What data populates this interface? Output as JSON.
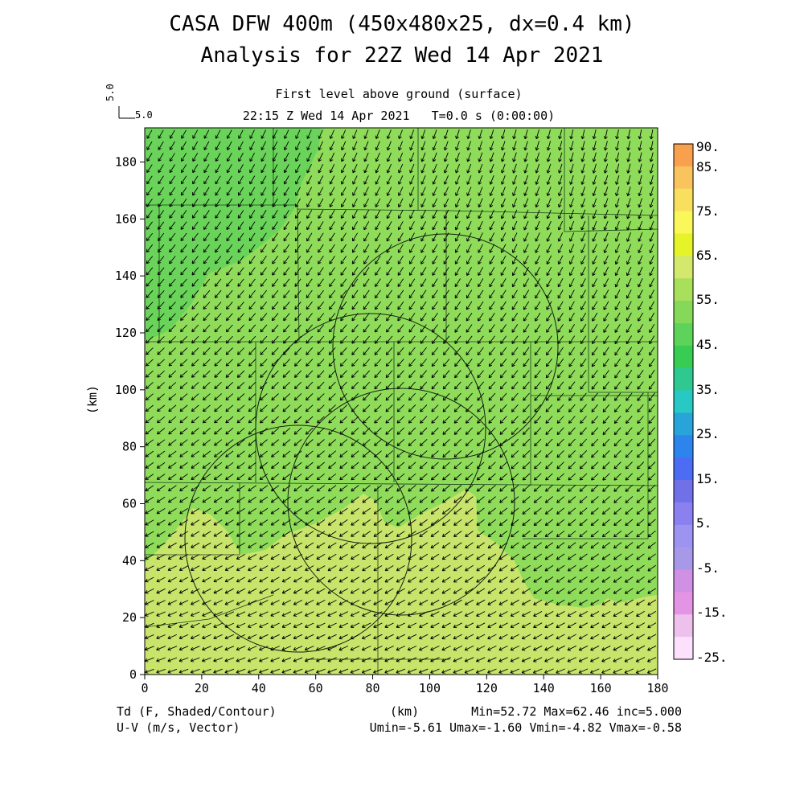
{
  "title": {
    "line1": "CASA DFW 400m (450x480x25, dx=0.4 km)",
    "line2": "Analysis for 22Z Wed 14 Apr 2021",
    "subtitle1": "First level above ground (surface)",
    "subtitle2": "22:15 Z Wed 14 Apr 2021   T=0.0 s (0:00:00)"
  },
  "vector_reference": {
    "top_label": "5.0",
    "right_label": "5.0"
  },
  "footer": {
    "left1": "Td (F, Shaded/Contour)",
    "left2": "U-V (m/s, Vector)",
    "center": "(km)",
    "right1": "Min=52.72 Max=62.46 inc=5.000",
    "right2": "Umin=-5.61 Umax=-1.60 Vmin=-4.82 Vmax=-0.58"
  },
  "chart_data": {
    "type": "heatmap",
    "variable": "Td (F, Shaded/Contour)",
    "vectors": "U-V (m/s, Vector)",
    "xlabel": "(km)",
    "ylabel": "(km)",
    "xlim": [
      0,
      180
    ],
    "ylim": [
      0,
      192
    ],
    "x_ticks": [
      0,
      20,
      40,
      60,
      80,
      100,
      120,
      140,
      160,
      180
    ],
    "y_ticks": [
      0,
      20,
      40,
      60,
      80,
      100,
      120,
      140,
      160,
      180
    ],
    "min": 52.72,
    "max": 62.46,
    "inc": 5.0,
    "u_range": [
      -5.61,
      -1.6
    ],
    "v_range": [
      -4.82,
      -0.58
    ],
    "region_colors": {
      "band_45_50": "#6ad45a",
      "band_50_55": "#8fdc5a",
      "band_55_60": "#c8e46a"
    },
    "colorbar": {
      "labels": [
        "90.",
        "85.",
        "75.",
        "65.",
        "55.",
        "45.",
        "35.",
        "25.",
        "15.",
        "5.",
        "-5.",
        "-15.",
        "-25."
      ],
      "colors": [
        "#f9a04e",
        "#f9c35e",
        "#f9df5e",
        "#f9f75a",
        "#e4f428",
        "#d4e86e",
        "#a8e05c",
        "#86d858",
        "#5ed35a",
        "#38cc52",
        "#2ec890",
        "#28c8c4",
        "#28a4d8",
        "#2c84ec",
        "#4c6cf4",
        "#7070e8",
        "#8a80f0",
        "#9c94f0",
        "#a898e8",
        "#d090e4",
        "#e494e4",
        "#eec0ec",
        "#fce0fc"
      ]
    }
  }
}
